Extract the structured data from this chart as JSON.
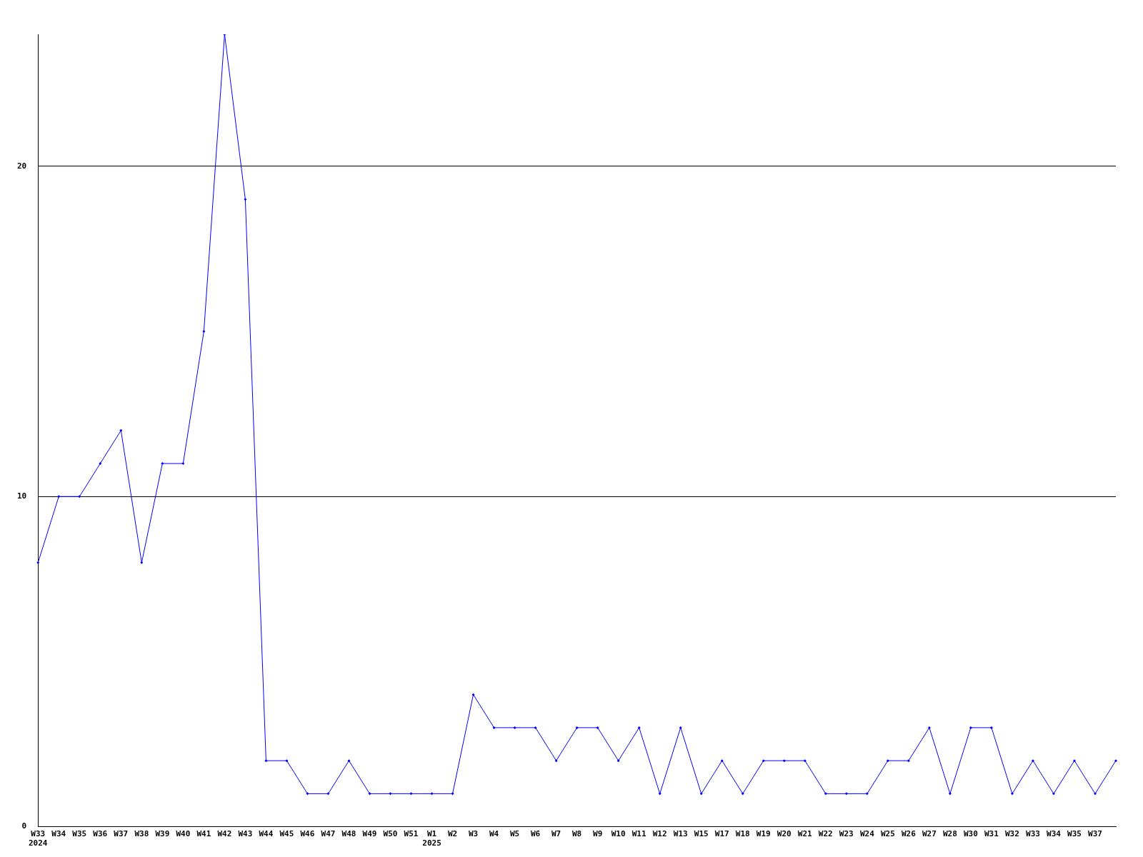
{
  "chart_data": {
    "type": "line",
    "categories": [
      "W33\n2024",
      "W34",
      "W35",
      "W36",
      "W37",
      "W38",
      "W39",
      "W40",
      "W41",
      "W42",
      "W43",
      "W44",
      "W45",
      "W46",
      "W47",
      "W48",
      "W49",
      "W50",
      "W51",
      "W1\n2025",
      "W2",
      "W3",
      "W4",
      "W5",
      "W6",
      "W7",
      "W8",
      "W9",
      "W10",
      "W11",
      "W12",
      "W13",
      "W15",
      "W17",
      "W18",
      "W19",
      "W20",
      "W21",
      "W22",
      "W23",
      "W24",
      "W25",
      "W26",
      "W27",
      "W28",
      "W30",
      "W31",
      "W32",
      "W33",
      "W34",
      "W35",
      "W37",
      null
    ],
    "series": [
      {
        "color": "#0000ff",
        "values": [
          8,
          10,
          10,
          11,
          12,
          8,
          11,
          11,
          15,
          24,
          19,
          2,
          2,
          1,
          1,
          2,
          1,
          1,
          1,
          1,
          1,
          4,
          3,
          3,
          3,
          2,
          3,
          3,
          2,
          3,
          1,
          3,
          1,
          2,
          1,
          2,
          2,
          2,
          1,
          1,
          1,
          2,
          2,
          3,
          1,
          3,
          3,
          1,
          2,
          1,
          2,
          1,
          2
        ]
      }
    ],
    "ylim": [
      0,
      24
    ],
    "yticks": [
      0,
      10,
      20
    ],
    "grid": "y",
    "legend": false,
    "marker": "diamond",
    "line_style": "solid"
  }
}
